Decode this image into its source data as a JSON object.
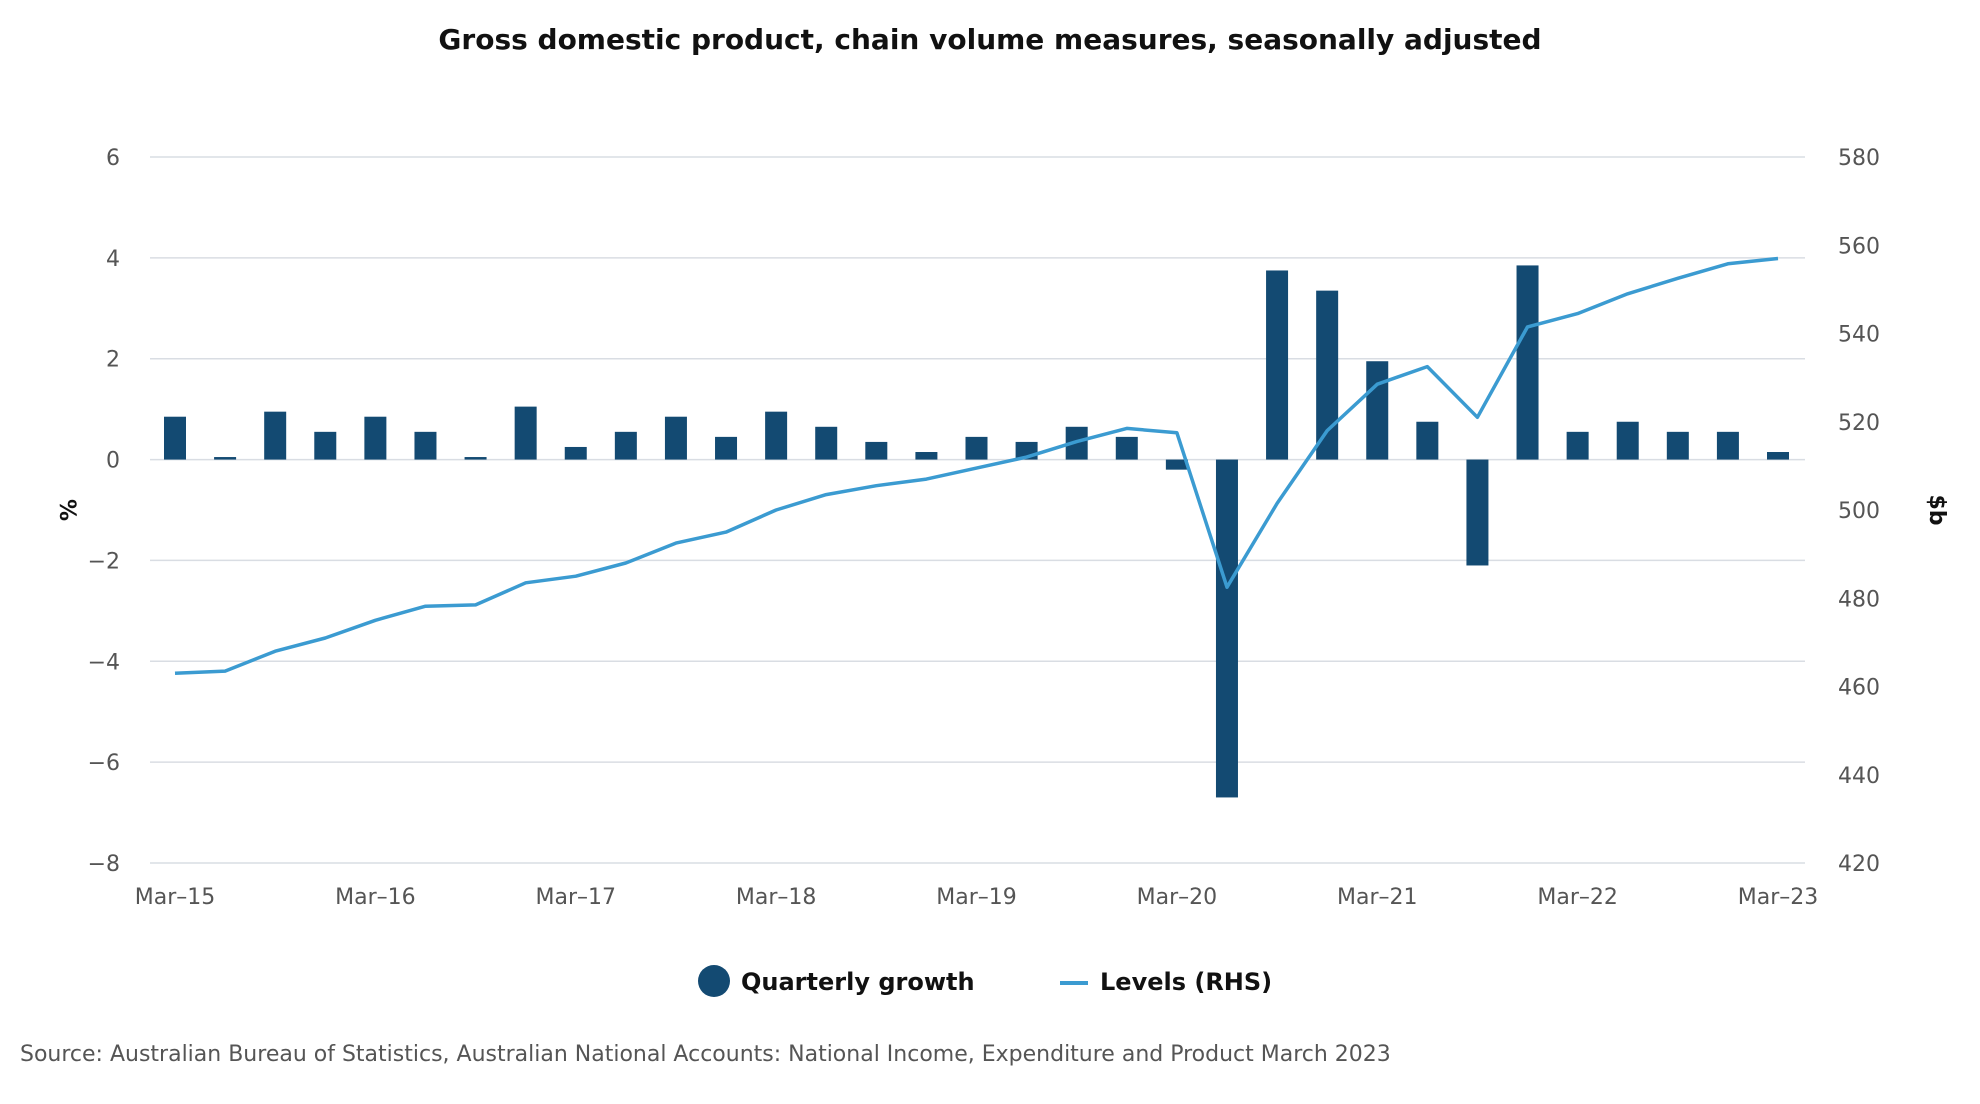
{
  "chart_data": {
    "type": "bar",
    "title": "Gross domestic product, chain volume measures, seasonally adjusted",
    "ylabel_left": "%",
    "ylabel_right": "$b",
    "ylim_left": [
      -8,
      6
    ],
    "ylim_right": [
      420,
      580
    ],
    "yticks_left": [
      "6",
      "4",
      "2",
      "0",
      "−2",
      "−4",
      "−6",
      "−8"
    ],
    "yticks_right": [
      "580",
      "560",
      "540",
      "520",
      "500",
      "480",
      "460",
      "440",
      "420"
    ],
    "xtick_labels": [
      "Mar–15",
      "Mar–16",
      "Mar–17",
      "Mar–18",
      "Mar–19",
      "Mar–20",
      "Mar–21",
      "Mar–22",
      "Mar–23"
    ],
    "categories": [
      "Mar-15",
      "Jun-15",
      "Sep-15",
      "Dec-15",
      "Mar-16",
      "Jun-16",
      "Sep-16",
      "Dec-16",
      "Mar-17",
      "Jun-17",
      "Sep-17",
      "Dec-17",
      "Mar-18",
      "Jun-18",
      "Sep-18",
      "Dec-18",
      "Mar-19",
      "Jun-19",
      "Sep-19",
      "Dec-19",
      "Mar-20",
      "Jun-20",
      "Sep-20",
      "Dec-20",
      "Mar-21",
      "Jun-21",
      "Sep-21",
      "Dec-21",
      "Mar-22",
      "Jun-22",
      "Sep-22",
      "Dec-22",
      "Mar-23"
    ],
    "series": [
      {
        "name": "Quarterly growth",
        "type": "bar",
        "axis": "left",
        "color": "#134a72",
        "values": [
          0.85,
          0.05,
          0.95,
          0.55,
          0.85,
          0.55,
          0.05,
          1.05,
          0.25,
          0.55,
          0.85,
          0.45,
          0.95,
          0.65,
          0.35,
          0.15,
          0.45,
          0.35,
          0.65,
          0.45,
          -0.2,
          -6.7,
          3.75,
          3.35,
          1.95,
          0.75,
          -2.1,
          3.85,
          0.55,
          0.75,
          0.55,
          0.55,
          0.15
        ]
      },
      {
        "name": "Levels (RHS)",
        "type": "line",
        "axis": "right",
        "color": "#3b9bd1",
        "values": [
          463,
          463.5,
          468,
          471,
          475,
          478.2,
          478.5,
          483.5,
          485,
          488,
          492.5,
          495,
          500,
          503.5,
          505.5,
          507,
          509.5,
          512,
          515.5,
          518.5,
          517.5,
          482.5,
          501.5,
          518,
          528.5,
          532.5,
          521,
          541.5,
          544.5,
          549,
          552.5,
          555.8,
          557
        ]
      }
    ],
    "legend": {
      "placement": "bottom-center",
      "items": [
        "Quarterly growth",
        "Levels (RHS)"
      ]
    },
    "grid": true,
    "source": "Source: Australian Bureau of Statistics, Australian National Accounts: National Income, Expenditure and Product March 2023"
  }
}
